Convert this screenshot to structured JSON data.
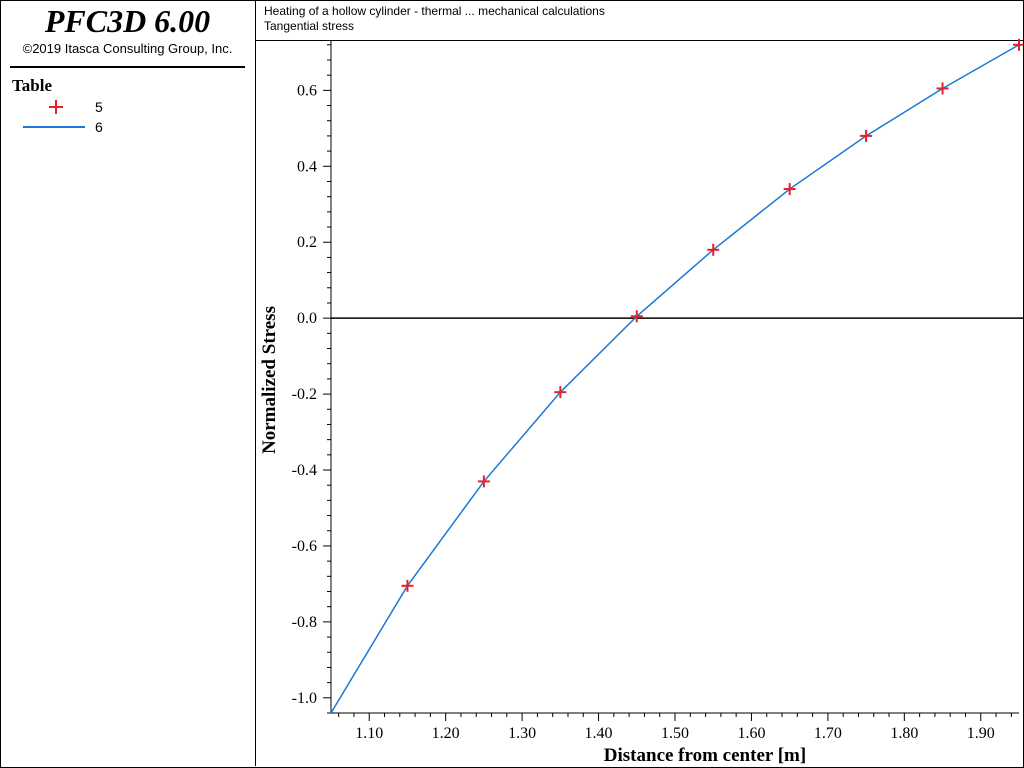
{
  "app": {
    "title": "PFC3D 6.00",
    "copyright": "©2019 Itasca Consulting Group, Inc."
  },
  "legend": {
    "heading": "Table",
    "items": [
      {
        "label": "5",
        "symbol": "plus-marker",
        "color": "#e8202a"
      },
      {
        "label": "6",
        "symbol": "line",
        "color": "#1a78d6"
      }
    ]
  },
  "plot": {
    "title": "Heating of a hollow cylinder - thermal ... mechanical calculations",
    "subtitle": "Tangential stress"
  },
  "chart_data": {
    "type": "line",
    "xlabel": "Distance from center [m]",
    "ylabel": "Normalized Stress",
    "xlim": [
      1.05,
      1.95
    ],
    "ylim": [
      -1.04,
      0.73
    ],
    "xticks": [
      "1.10",
      "1.20",
      "1.30",
      "1.40",
      "1.50",
      "1.60",
      "1.70",
      "1.80",
      "1.90"
    ],
    "yticks": [
      "-1.0",
      "-0.8",
      "-0.6",
      "-0.4",
      "-0.2",
      "0.0",
      "0.2",
      "0.4",
      "0.6"
    ],
    "zero_line": true,
    "grid": false,
    "series": [
      {
        "name": "5",
        "kind": "scatter",
        "marker": "plus",
        "color": "#e8202a",
        "x": [
          1.15,
          1.25,
          1.35,
          1.45,
          1.55,
          1.65,
          1.75,
          1.85,
          1.95
        ],
        "y": [
          -0.705,
          -0.43,
          -0.195,
          0.005,
          0.18,
          0.34,
          0.48,
          0.605,
          0.72
        ]
      },
      {
        "name": "6",
        "kind": "line",
        "color": "#1a78d6",
        "x": [
          1.05,
          1.15,
          1.25,
          1.35,
          1.45,
          1.55,
          1.65,
          1.75,
          1.85,
          1.95
        ],
        "y": [
          -1.04,
          -0.705,
          -0.43,
          -0.195,
          0.005,
          0.18,
          0.34,
          0.48,
          0.605,
          0.72
        ]
      }
    ]
  }
}
